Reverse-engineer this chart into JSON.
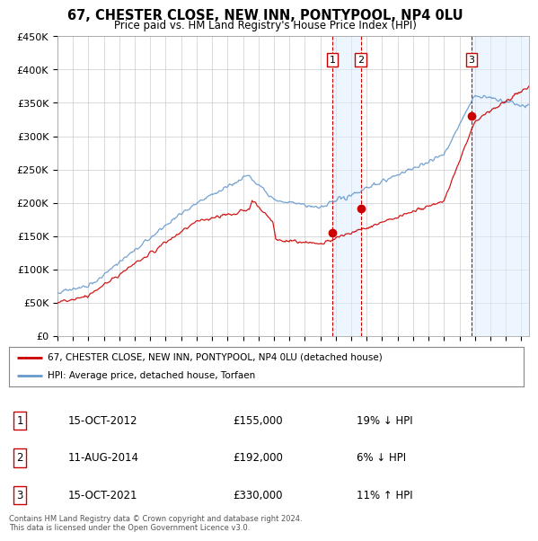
{
  "title": "67, CHESTER CLOSE, NEW INN, PONTYPOOL, NP4 0LU",
  "subtitle": "Price paid vs. HM Land Registry's House Price Index (HPI)",
  "ylim": [
    0,
    450000
  ],
  "yticks": [
    0,
    50000,
    100000,
    150000,
    200000,
    250000,
    300000,
    350000,
    400000,
    450000
  ],
  "ytick_labels": [
    "£0",
    "£50K",
    "£100K",
    "£150K",
    "£200K",
    "£250K",
    "£300K",
    "£350K",
    "£400K",
    "£450K"
  ],
  "line_red_color": "#cc0000",
  "line_blue_color": "#6699cc",
  "vline_color": "#cc0000",
  "span_color": "#ddeeff",
  "transactions": [
    {
      "date_num": 2012.79,
      "price": 155000,
      "label": "1"
    },
    {
      "date_num": 2014.62,
      "price": 192000,
      "label": "2"
    },
    {
      "date_num": 2021.79,
      "price": 330000,
      "label": "3"
    }
  ],
  "legend_entries": [
    "67, CHESTER CLOSE, NEW INN, PONTYPOOL, NP4 0LU (detached house)",
    "HPI: Average price, detached house, Torfaen"
  ],
  "table_rows": [
    {
      "num": "1",
      "date": "15-OCT-2012",
      "price": "£155,000",
      "hpi": "19% ↓ HPI"
    },
    {
      "num": "2",
      "date": "11-AUG-2014",
      "price": "£192,000",
      "hpi": "6% ↓ HPI"
    },
    {
      "num": "3",
      "date": "15-OCT-2021",
      "price": "£330,000",
      "hpi": "11% ↑ HPI"
    }
  ],
  "footer": "Contains HM Land Registry data © Crown copyright and database right 2024.\nThis data is licensed under the Open Government Licence v3.0.",
  "xmin": 1995,
  "xmax": 2025.5
}
